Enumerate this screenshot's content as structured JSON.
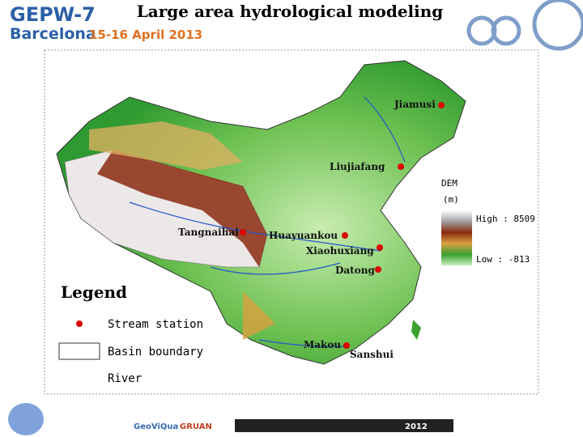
{
  "header": {
    "conference": "GEPW-7",
    "city": "Barcelona",
    "dates": "15-16 April 2013",
    "title": "Large area hydrological modeling"
  },
  "map": {
    "stations": [
      "Jiamusi",
      "Liujiafang",
      "Tangnaihai",
      "Huayuankou",
      "Xiaohuxiang",
      "Datong",
      "Makou",
      "Sanshui"
    ],
    "legend": {
      "title": "Legend",
      "items": [
        "Stream station",
        "Basin boundary",
        "River"
      ]
    },
    "dem_legend": {
      "title": "DEM",
      "unit": "(m)",
      "high": "High : 8509",
      "low": "Low : -813"
    }
  },
  "footer": {
    "logos": [
      "GeoViQua",
      "GRUAN"
    ],
    "year": "2012"
  }
}
